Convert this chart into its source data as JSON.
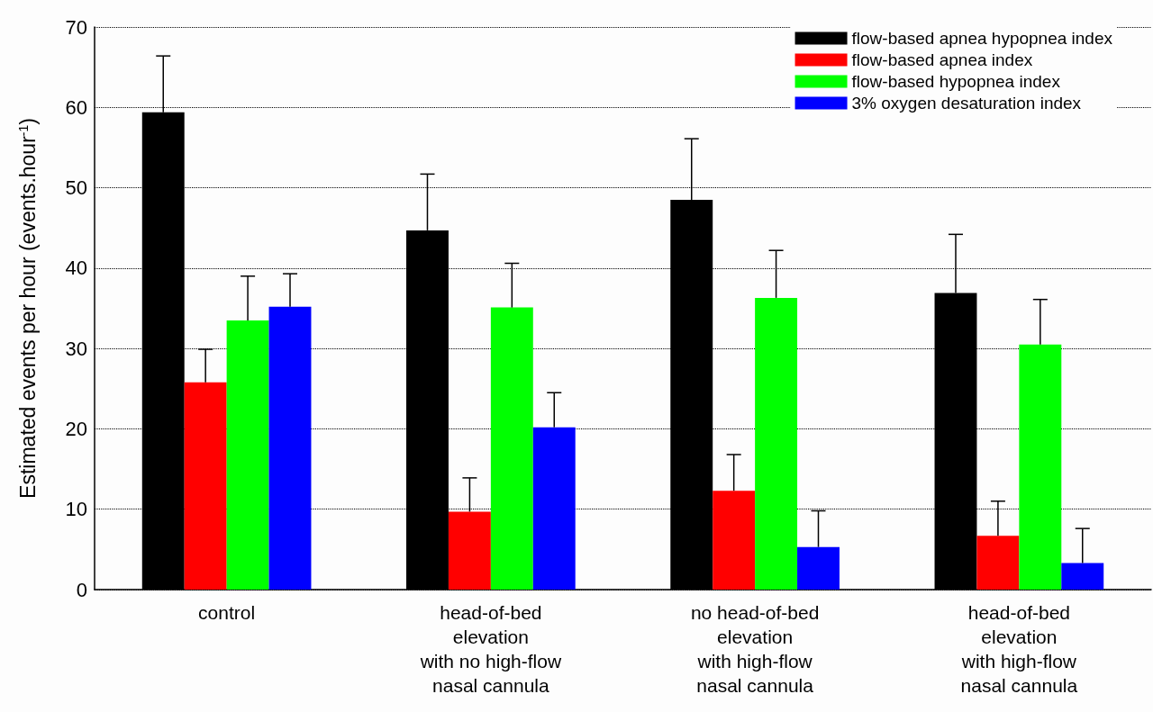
{
  "chart_data": {
    "type": "bar",
    "ylabel": "Estimated events per hour (events.hour$^{-1}$)",
    "categories": [
      "control",
      "head-of-bed\nelevation\nwith no high-flow\nnasal cannula",
      "no head-of-bed\nelevation\nwith high-flow\nnasal cannula",
      "head-of-bed\nelevation\nwith high-flow\nnasal cannula"
    ],
    "series": [
      {
        "name": "flow-based apnea hypopnea index",
        "color": "#000000",
        "values": [
          59.4,
          44.7,
          48.5,
          36.9
        ],
        "errors": [
          [
            59.4,
            66.4
          ],
          [
            44.7,
            51.7
          ],
          [
            48.5,
            56.1
          ],
          [
            36.9,
            44.2
          ]
        ]
      },
      {
        "name": "flow-based apnea index",
        "color": "#ff0000",
        "values": [
          25.8,
          9.7,
          12.3,
          6.7
        ],
        "errors": [
          [
            25.8,
            29.9
          ],
          [
            9.7,
            13.9
          ],
          [
            12.3,
            16.8
          ],
          [
            6.7,
            11.0
          ]
        ]
      },
      {
        "name": "flow-based hypopnea index",
        "color": "#00ff00",
        "values": [
          33.5,
          35.1,
          36.3,
          30.5
        ],
        "errors": [
          [
            33.5,
            39.0
          ],
          [
            35.1,
            40.6
          ],
          [
            36.3,
            42.2
          ],
          [
            30.5,
            36.1
          ]
        ]
      },
      {
        "name": "3% oxygen desaturation index",
        "color": "#0000ff",
        "values": [
          35.2,
          20.2,
          5.3,
          3.3
        ],
        "errors": [
          [
            35.2,
            39.3
          ],
          [
            20.2,
            24.5
          ],
          [
            5.3,
            9.8
          ],
          [
            3.3,
            7.6
          ]
        ]
      }
    ],
    "ylim": [
      0,
      70
    ],
    "yticks": [
      0,
      10,
      20,
      30,
      40,
      50,
      60,
      70
    ],
    "grid": "y",
    "legend": "top right"
  }
}
